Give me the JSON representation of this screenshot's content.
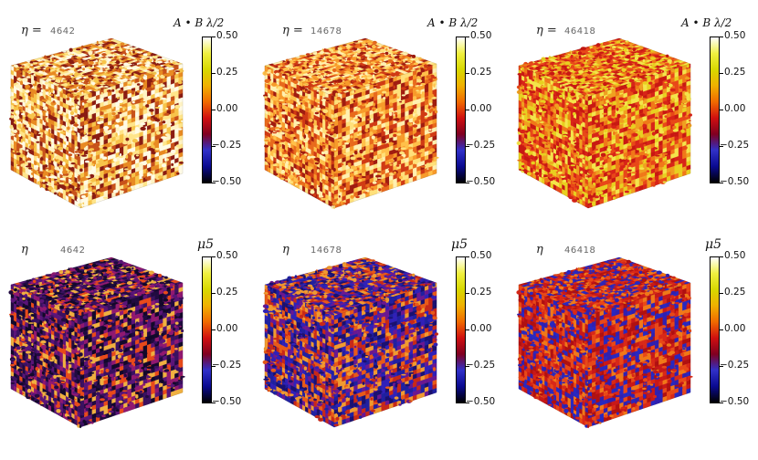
{
  "rows": [
    {
      "colorbar_label": "A • B λ/2",
      "colormap": "hot",
      "colorbar_stops": [
        "#000000",
        "#0a0a90",
        "#3030c8",
        "#800020",
        "#d01010",
        "#f06a00",
        "#f0b000",
        "#d8d800",
        "#f0f040",
        "#ffffff"
      ],
      "ticks": [
        "0.50",
        "0.25",
        "0.00",
        "-0.25",
        "-0.50"
      ],
      "panels": [
        {
          "eta_symbol": "η =",
          "eta_value": "4642",
          "palette": [
            "#fffbe6",
            "#fff3c4",
            "#ffe58a",
            "#f7c44a",
            "#e88a22",
            "#c8521a",
            "#8a1c12"
          ],
          "bias": 0.25
        },
        {
          "eta_symbol": "η =",
          "eta_value": "14678",
          "palette": [
            "#ffe07a",
            "#ffc04a",
            "#f79a2a",
            "#e86a1c",
            "#d03a14",
            "#a01c10",
            "#fff0b0"
          ],
          "bias": 0.45
        },
        {
          "eta_symbol": "η =",
          "eta_value": "46418",
          "palette": [
            "#e8d020",
            "#f0a020",
            "#f07818",
            "#e84818",
            "#d82418",
            "#f4e44a",
            "#c81812"
          ],
          "bias": 0.5
        }
      ]
    },
    {
      "colorbar_label": "μ5",
      "colormap": "hot",
      "colorbar_stops": [
        "#000000",
        "#0a0a90",
        "#3030c8",
        "#800020",
        "#d01010",
        "#f06a00",
        "#f0b000",
        "#d8d800",
        "#f0f040",
        "#ffffff"
      ],
      "ticks": [
        "0.50",
        "0.25",
        "0.00",
        "-0.25",
        "-0.50"
      ],
      "panels": [
        {
          "eta_symbol": "η",
          "eta_value": "4642",
          "palette": [
            "#12082a",
            "#200a40",
            "#3a1060",
            "#5a1478",
            "#901870",
            "#e84a1a",
            "#f0b040"
          ],
          "bias": 0.3
        },
        {
          "eta_symbol": "η",
          "eta_value": "14678",
          "palette": [
            "#2020a0",
            "#3020b8",
            "#1a1070",
            "#6a1890",
            "#c82818",
            "#e85a18",
            "#f09a30"
          ],
          "bias": 0.4
        },
        {
          "eta_symbol": "η",
          "eta_value": "46418",
          "palette": [
            "#c81818",
            "#d82818",
            "#e84818",
            "#b01010",
            "#f07818",
            "#3020b0",
            "#2828c0"
          ],
          "bias": 0.55
        }
      ]
    }
  ]
}
